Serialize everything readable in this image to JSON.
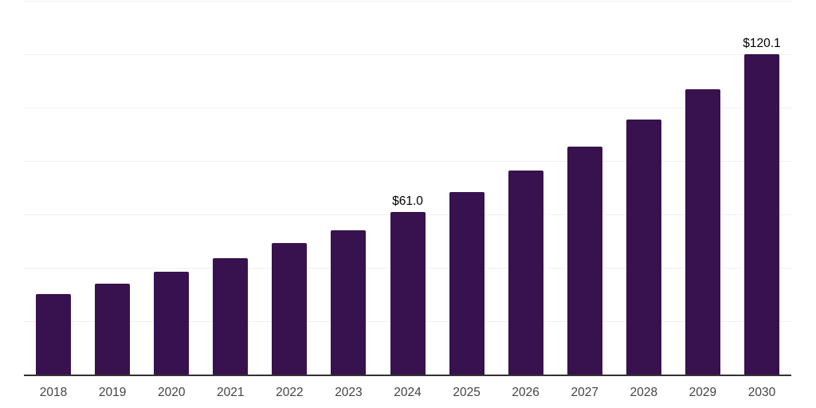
{
  "chart_data": {
    "type": "bar",
    "categories": [
      "2018",
      "2019",
      "2020",
      "2021",
      "2022",
      "2023",
      "2024",
      "2025",
      "2026",
      "2027",
      "2028",
      "2029",
      "2030"
    ],
    "values": [
      30.3,
      34.1,
      38.5,
      43.6,
      49.2,
      54.0,
      61.0,
      68.3,
      76.5,
      85.5,
      95.5,
      107.0,
      120.1
    ],
    "data_labels": [
      "",
      "",
      "",
      "",
      "",
      "",
      "$61.0",
      "",
      "",
      "",
      "",
      "",
      "$120.1"
    ],
    "title": "",
    "xlabel": "",
    "ylabel": "",
    "ylim": [
      0,
      140
    ],
    "grid": true,
    "gridline_step": 20,
    "legend": "none",
    "colors": {
      "bar": "#38124E",
      "axis": "#333333",
      "gridline": "#f0f0f0",
      "data_label": "#000000",
      "tick_label": "#444444",
      "background": "#ffffff"
    }
  }
}
